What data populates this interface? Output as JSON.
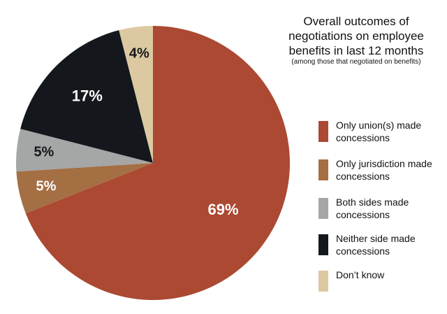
{
  "chart_data": {
    "type": "pie",
    "title": "Overall outcomes of negotiations on employee benefits in last 12 months",
    "title_lines": [
      "Overall outcomes of",
      "negotiations on employee",
      "benefits in last 12 months"
    ],
    "subtitle": "(among those that negotiated on benefits)",
    "legend_position": "right",
    "slices": [
      {
        "label": "Only union(s) made concessions",
        "value": 69,
        "display": "69%",
        "color": "#ab4932"
      },
      {
        "label": "Only jurisdiction made concessions",
        "value": 5,
        "display": "5%",
        "color": "#a56f44"
      },
      {
        "label": "Both sides made concessions",
        "value": 5,
        "display": "5%",
        "color": "#a5a6a6"
      },
      {
        "label": "Neither side made concessions",
        "value": 17,
        "display": "17%",
        "color": "#14181c"
      },
      {
        "label": "Don’t know",
        "value": 4,
        "display": "4%",
        "color": "#dcc9a2"
      }
    ]
  }
}
